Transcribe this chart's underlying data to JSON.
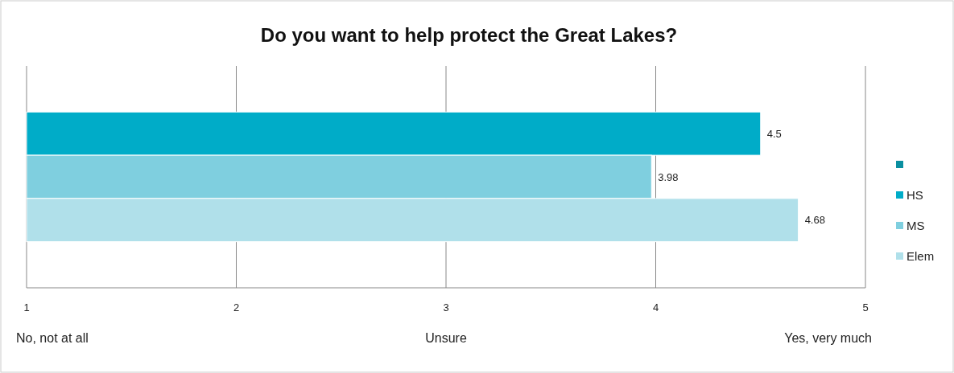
{
  "chart_data": {
    "type": "bar",
    "orientation": "horizontal",
    "title": "Do you want to help protect the Great Lakes?",
    "categories": [
      null
    ],
    "series": [
      {
        "name": "HS",
        "color": "#00acc8",
        "values": [
          4.5
        ]
      },
      {
        "name": "MS",
        "color": "#7fcfdf",
        "values": [
          3.98
        ]
      },
      {
        "name": "Elem",
        "color": "#b0e0ea",
        "values": [
          4.68
        ]
      }
    ],
    "xlim": [
      1,
      5
    ],
    "xticks": [
      1,
      2,
      3,
      4,
      5
    ],
    "grid": "x",
    "legend": "right",
    "data_labels": true,
    "annotations": [
      "No, not at all",
      "Unsure",
      "Yes, very much"
    ]
  }
}
